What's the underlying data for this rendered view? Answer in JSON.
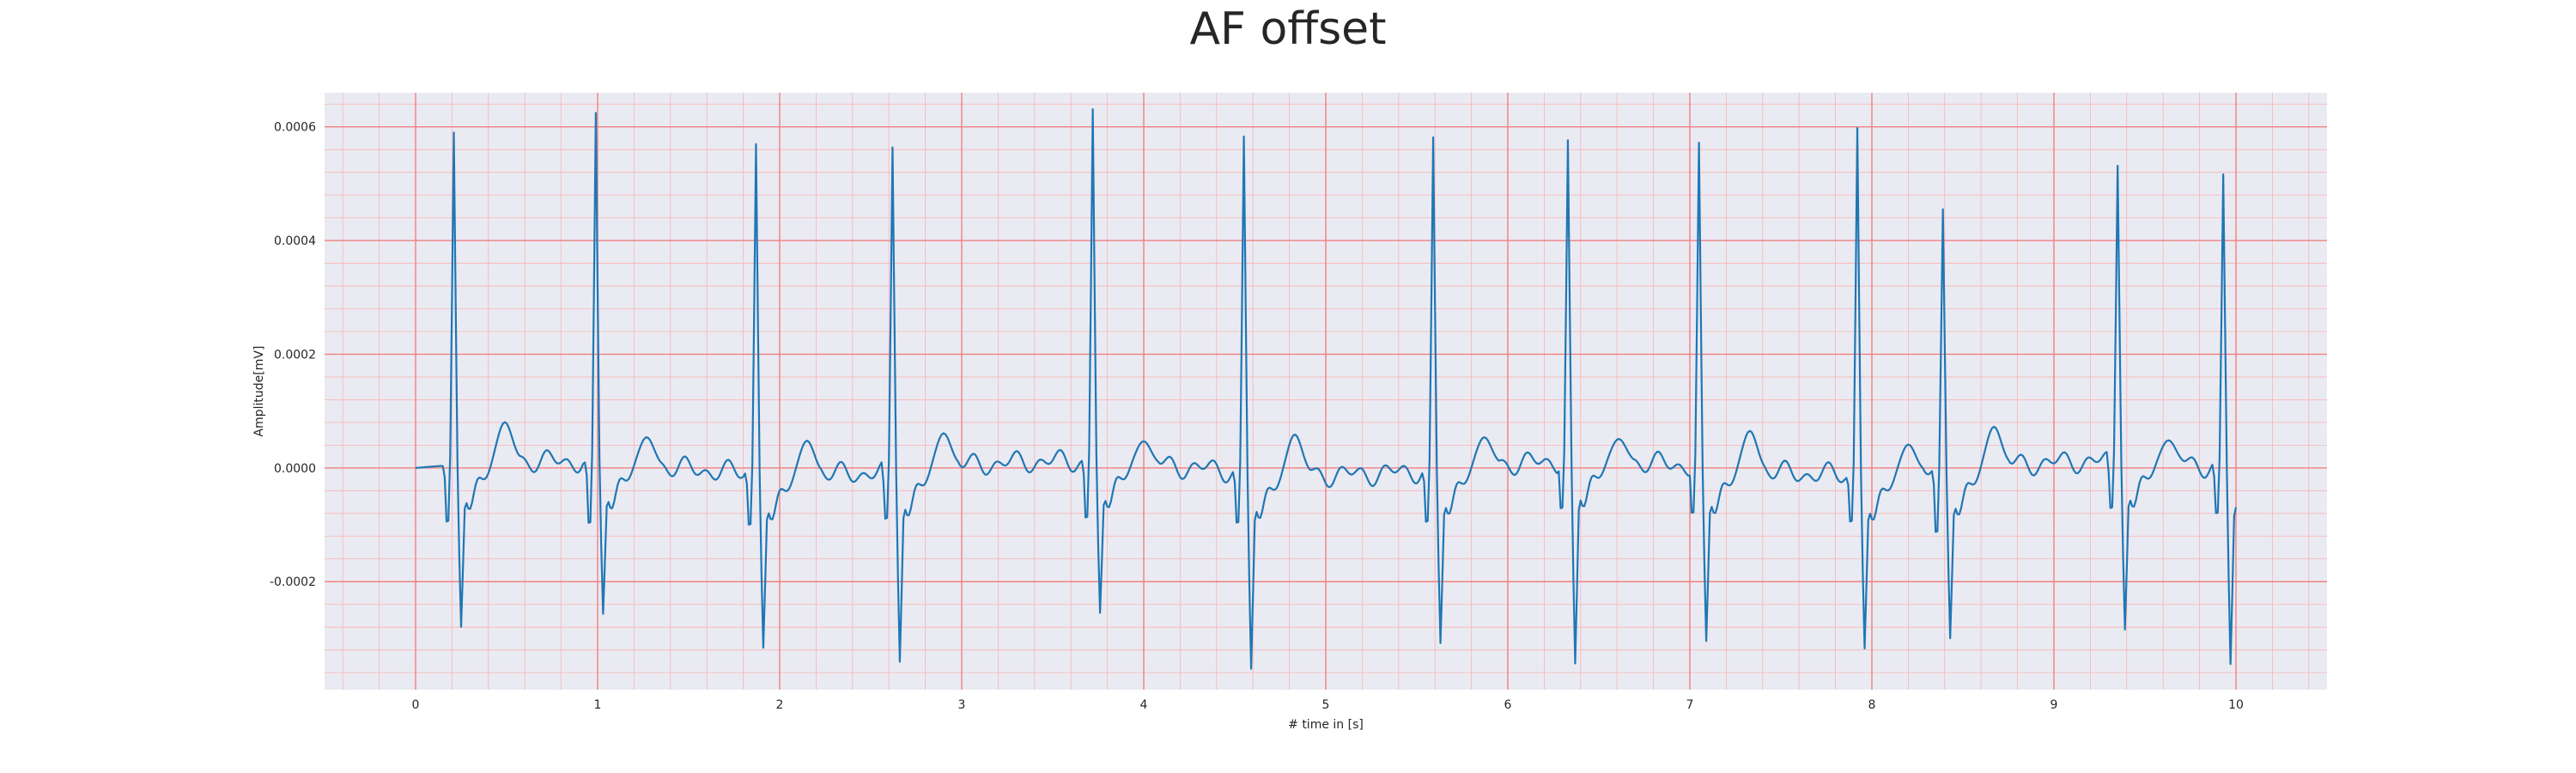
{
  "chart_data": {
    "type": "line",
    "title": "AF offset",
    "xlabel": "# time in [s]",
    "ylabel": "Amplitude[mV]",
    "xlim": [
      -0.5,
      10.5
    ],
    "ylim": [
      -0.00039,
      0.00066
    ],
    "x_ticks": [
      0,
      1,
      2,
      3,
      4,
      5,
      6,
      7,
      8,
      9,
      10
    ],
    "y_ticks": [
      -0.0002,
      0.0,
      0.0002,
      0.0004,
      0.0006
    ],
    "y_tick_labels": [
      "-0.0002",
      "0.0000",
      "0.0002",
      "0.0004",
      "0.0006"
    ],
    "grid": true,
    "minor_grid": true,
    "sample_interval_s": 0.01,
    "series": [
      {
        "name": "",
        "color": "#1f77b4",
        "beats": [
          {
            "r_time": 0.21,
            "r_peak": 0.000585,
            "s_min": -0.00027,
            "q_min": -0.00012,
            "t_amp": 7e-05
          },
          {
            "r_time": 0.99,
            "r_peak": 0.000615,
            "s_min": -0.00025,
            "q_min": -0.00013,
            "t_amp": 5e-05
          },
          {
            "r_time": 1.87,
            "r_peak": 0.00058,
            "s_min": -0.00029,
            "q_min": -0.00011,
            "t_amp": 6e-05
          },
          {
            "r_time": 2.62,
            "r_peak": 0.00057,
            "s_min": -0.00032,
            "q_min": -0.0001,
            "t_amp": 6e-05
          },
          {
            "r_time": 3.72,
            "r_peak": 0.00062,
            "s_min": -0.00025,
            "q_min": -0.00012,
            "t_amp": 4e-05
          },
          {
            "r_time": 4.55,
            "r_peak": 0.00059,
            "s_min": -0.00033,
            "q_min": -0.00011,
            "t_amp": 7e-05
          },
          {
            "r_time": 5.59,
            "r_peak": 0.000585,
            "s_min": -0.00029,
            "q_min": -0.00011,
            "t_amp": 5e-05
          },
          {
            "r_time": 6.33,
            "r_peak": 0.000565,
            "s_min": -0.00034,
            "q_min": -0.0001,
            "t_amp": 4e-05
          },
          {
            "r_time": 7.05,
            "r_peak": 0.00057,
            "s_min": -0.00029,
            "q_min": -0.0001,
            "t_amp": 7e-05
          },
          {
            "r_time": 7.92,
            "r_peak": 0.00061,
            "s_min": -0.00029,
            "q_min": -0.0001,
            "t_amp": 5e-05
          },
          {
            "r_time": 8.39,
            "r_peak": 0.00046,
            "s_min": -0.00028,
            "q_min": -0.00013,
            "t_amp": 7e-05
          },
          {
            "r_time": 9.35,
            "r_peak": 0.00052,
            "s_min": -0.00028,
            "q_min": -0.0001,
            "t_amp": 4e-05
          },
          {
            "r_time": 9.93,
            "r_peak": 0.000515,
            "s_min": -0.00033,
            "q_min": -0.0001,
            "t_amp": 3e-05
          }
        ]
      }
    ],
    "colors": {
      "plot_background": "#eaeaf2",
      "major_grid": "#f08080",
      "minor_grid": "#f8b4b4",
      "line": "#1f77b4"
    }
  }
}
